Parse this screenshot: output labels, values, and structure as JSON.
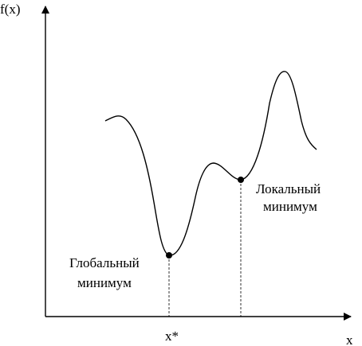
{
  "diagram": {
    "y_axis_label": "f(x)",
    "x_axis_label": "x",
    "x_star_label": "x*",
    "global_minimum_label": [
      "Глобальный",
      "минимум"
    ],
    "local_minimum_label": [
      "Локальный",
      "минимум"
    ],
    "colors": {
      "stroke": "#000000",
      "background": "#ffffff"
    }
  }
}
